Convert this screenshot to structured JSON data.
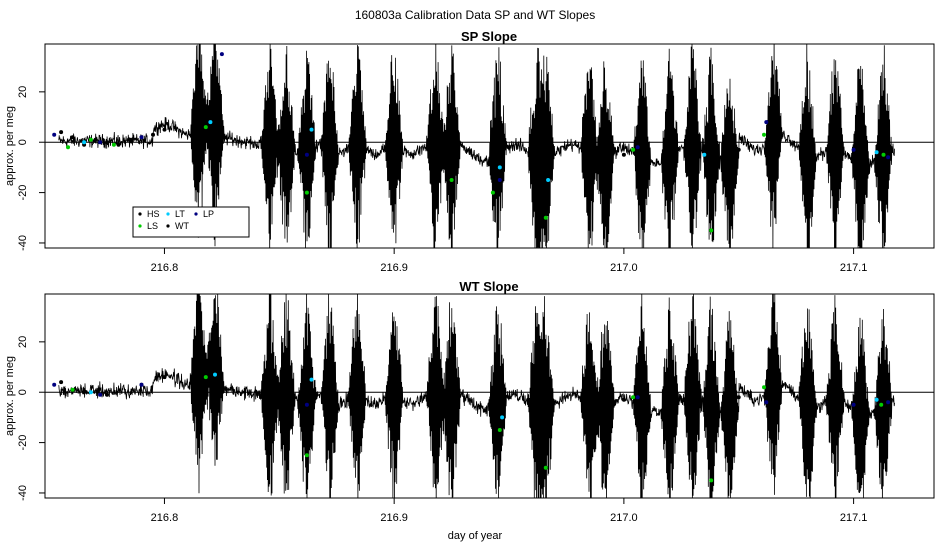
{
  "suptitle": "160803a   Calibration Data SP and WT Slopes",
  "chart_data": [
    {
      "type": "line",
      "title": "SP Slope",
      "xlabel": "",
      "ylabel": "approx. per meg",
      "xlim": [
        216.748,
        217.135
      ],
      "ylim": [
        -42,
        39
      ],
      "xticks": [
        216.8,
        216.9,
        217.0,
        217.1
      ],
      "xtick_labels": [
        "216.8",
        "216.9",
        "217.0",
        "217.1"
      ],
      "yticks": [
        -40,
        -20,
        0,
        20
      ],
      "ytick_labels": [
        "-40",
        "-20",
        "0",
        "20"
      ],
      "grid": false,
      "reference_line_y": 0,
      "series": [
        {
          "name": "HS",
          "color": "#000000",
          "points": [
            [
              216.755,
              4
            ],
            [
              216.76,
              2
            ],
            [
              216.765,
              -1
            ],
            [
              216.77,
              1
            ],
            [
              216.775,
              0
            ],
            [
              216.78,
              -1
            ],
            [
              216.785,
              1
            ],
            [
              216.79,
              2
            ],
            [
              216.795,
              3
            ]
          ]
        },
        {
          "name": "LS",
          "color": "#00cc00",
          "points": [
            [
              216.758,
              -2
            ],
            [
              216.768,
              1
            ],
            [
              216.778,
              -1
            ],
            [
              216.818,
              6
            ],
            [
              216.862,
              -20
            ],
            [
              216.925,
              -15
            ],
            [
              216.943,
              -20
            ],
            [
              216.966,
              -30
            ],
            [
              217.004,
              -3
            ],
            [
              217.038,
              -35
            ],
            [
              217.061,
              3
            ],
            [
              217.113,
              -5
            ]
          ]
        },
        {
          "name": "LT",
          "color": "#00ccff",
          "points": [
            [
              216.765,
              0
            ],
            [
              216.82,
              8
            ],
            [
              216.864,
              5
            ],
            [
              216.946,
              -10
            ],
            [
              216.967,
              -15
            ],
            [
              217.035,
              -5
            ],
            [
              217.11,
              -4
            ]
          ]
        },
        {
          "name": "WT",
          "color": "#000000",
          "points": [
            [
              216.8,
              5
            ],
            [
              216.85,
              -5
            ],
            [
              216.9,
              -3
            ],
            [
              216.95,
              -2
            ],
            [
              217.0,
              -5
            ],
            [
              217.05,
              -3
            ],
            [
              217.09,
              -8
            ]
          ]
        },
        {
          "name": "LP",
          "color": "#000080",
          "points": [
            [
              216.752,
              3
            ],
            [
              216.772,
              0
            ],
            [
              216.79,
              2
            ],
            [
              216.825,
              35
            ],
            [
              216.862,
              -5
            ],
            [
              216.946,
              -15
            ],
            [
              217.006,
              -2
            ],
            [
              217.062,
              8
            ],
            [
              217.1,
              -3
            ],
            [
              217.115,
              -6
            ]
          ]
        }
      ],
      "legend": {
        "position": "bottom-left",
        "entries": [
          "HS",
          "LT",
          "LP",
          "LS",
          "WT"
        ]
      }
    },
    {
      "type": "line",
      "title": "WT Slope",
      "xlabel": "day of year",
      "ylabel": "approx. per meg",
      "xlim": [
        216.748,
        217.135
      ],
      "ylim": [
        -42,
        39
      ],
      "xticks": [
        216.8,
        216.9,
        217.0,
        217.1
      ],
      "xtick_labels": [
        "216.8",
        "216.9",
        "217.0",
        "217.1"
      ],
      "yticks": [
        -40,
        -20,
        0,
        20
      ],
      "ytick_labels": [
        "-40",
        "-20",
        "0",
        "20"
      ],
      "grid": false,
      "reference_line_y": 0,
      "series": [
        {
          "name": "HS",
          "color": "#000000",
          "points": [
            [
              216.755,
              4
            ],
            [
              216.765,
              0
            ],
            [
              216.775,
              -1
            ],
            [
              216.79,
              3
            ]
          ]
        },
        {
          "name": "LS",
          "color": "#00cc00",
          "points": [
            [
              216.76,
              1
            ],
            [
              216.818,
              6
            ],
            [
              216.862,
              -25
            ],
            [
              216.946,
              -15
            ],
            [
              216.966,
              -30
            ],
            [
              217.004,
              -2
            ],
            [
              217.038,
              -35
            ],
            [
              217.061,
              2
            ],
            [
              217.112,
              -5
            ]
          ]
        },
        {
          "name": "LT",
          "color": "#00ccff",
          "points": [
            [
              216.768,
              0
            ],
            [
              216.822,
              7
            ],
            [
              216.864,
              5
            ],
            [
              216.947,
              -10
            ],
            [
              217.11,
              -3
            ]
          ]
        },
        {
          "name": "WT",
          "color": "#000000",
          "points": [
            [
              216.8,
              6
            ],
            [
              216.85,
              -5
            ],
            [
              216.9,
              -4
            ],
            [
              216.95,
              -2
            ],
            [
              217.0,
              -3
            ],
            [
              217.05,
              -2
            ],
            [
              217.09,
              -8
            ]
          ]
        },
        {
          "name": "LP",
          "color": "#000080",
          "points": [
            [
              216.752,
              3
            ],
            [
              216.772,
              -1
            ],
            [
              216.79,
              3
            ],
            [
              216.862,
              -5
            ],
            [
              217.006,
              -2
            ],
            [
              217.062,
              -4
            ],
            [
              217.1,
              -5
            ],
            [
              217.115,
              -4
            ]
          ]
        }
      ]
    }
  ]
}
